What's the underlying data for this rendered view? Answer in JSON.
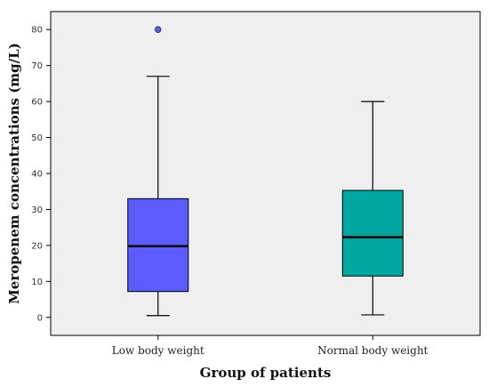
{
  "chart_data": {
    "type": "boxplot",
    "xlabel": "Group of patients",
    "ylabel": "Meropenem concentrations (mg/L)",
    "ylim": [
      -5,
      85
    ],
    "yticks": [
      0,
      10,
      20,
      30,
      40,
      50,
      60,
      70,
      80
    ],
    "grid": false,
    "categories": [
      "Low body weight",
      "Normal body weight"
    ],
    "boxes": [
      {
        "category": "Low body weight",
        "min": 0.5,
        "q1": 7.2,
        "median": 19.8,
        "q3": 33,
        "max": 67,
        "outliers": [
          80
        ],
        "color": "#5b5bff"
      },
      {
        "category": "Normal body weight",
        "min": 0.7,
        "q1": 11.5,
        "median": 22.3,
        "q3": 35.3,
        "max": 60,
        "outliers": [],
        "color": "#00a6a0"
      }
    ],
    "colors": {
      "plot_background": "#efefef",
      "outlier": "#5b5bff"
    }
  }
}
